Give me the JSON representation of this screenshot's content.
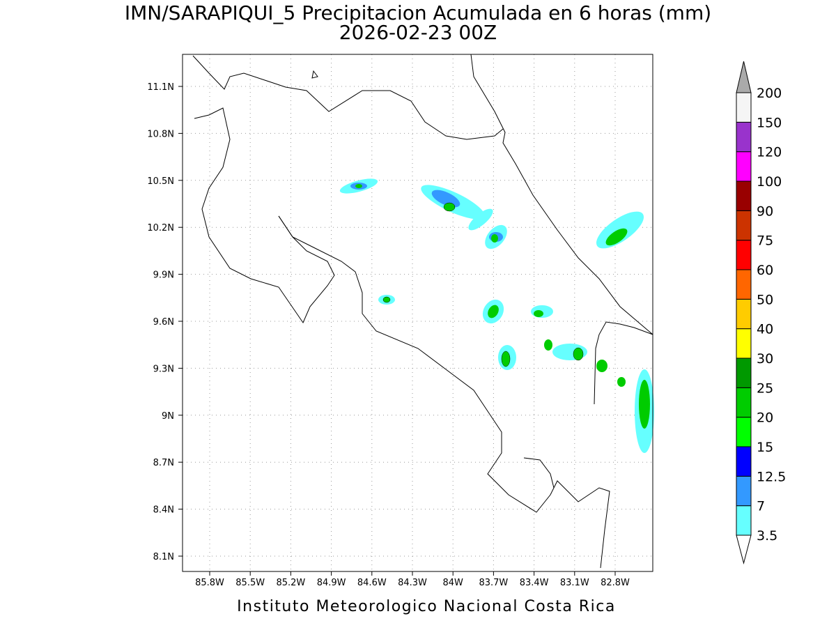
{
  "header": {
    "title": "IMN/SARAPIQUI_5 Precipitacion Acumulada en 6 horas (mm)",
    "subtitle": "2026-02-23 00Z"
  },
  "map": {
    "lon_labels": [
      "85.8W",
      "85.5W",
      "85.2W",
      "84.9W",
      "84.6W",
      "84.3W",
      "84W",
      "83.7W",
      "83.4W",
      "83.1W",
      "82.8W"
    ],
    "lat_labels": [
      "11.1N",
      "10.8N",
      "10.5N",
      "10.2N",
      "9.9N",
      "9.6N",
      "9.3N",
      "9N",
      "8.7N",
      "8.4N",
      "8.1N"
    ]
  },
  "colorbar": {
    "labels": [
      "3.5",
      "7",
      "12.5",
      "15",
      "20",
      "25",
      "30",
      "40",
      "50",
      "60",
      "75",
      "90",
      "100",
      "120",
      "150",
      "200"
    ],
    "colors": [
      "#66ffff",
      "#3399ff",
      "#0000ff",
      "#00ff00",
      "#00cc00",
      "#009900",
      "#ffff00",
      "#ffcc00",
      "#ff6600",
      "#ff0000",
      "#cc3300",
      "#990000",
      "#ff00ff",
      "#9933cc",
      "#f5f5f5"
    ],
    "under_color": "#ffffff",
    "over_color": "#aaaaaa"
  },
  "footer": "Instituto Meteorologico Nacional Costa Rica"
}
